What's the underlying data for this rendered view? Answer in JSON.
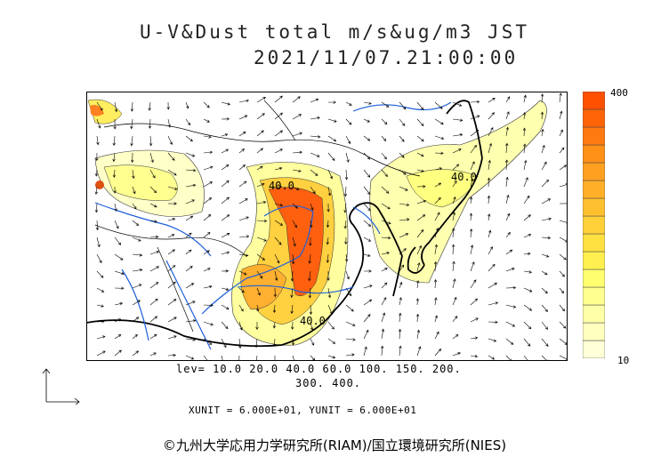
{
  "header": {
    "title": "U-V&Dust total m/s&ug/m3 JST",
    "datetime": "2021/11/07.21:00:00"
  },
  "legend": {
    "max_label": "400",
    "min_label": "10",
    "colors": [
      "#ffffd8",
      "#ffffc0",
      "#ffffa8",
      "#ffff90",
      "#ffff70",
      "#fff050",
      "#ffe040",
      "#ffd038",
      "#ffc030",
      "#ffb028",
      "#ffa020",
      "#ff9018",
      "#ff7a10",
      "#ff6408",
      "#ff5000"
    ]
  },
  "contour_levels": {
    "line1": "lev= 10.0 20.0 40.0 60.0 100. 150. 200.",
    "line2": "300. 400."
  },
  "units": "XUNIT = 6.000E+01, YUNIT = 6.000E+01",
  "map_labels": {
    "label_a": "40.0",
    "label_b": "40.0",
    "label_c": "40.0"
  },
  "credit": "©九州大学応用力学研究所(RIAM)/国立環境研究所(NIES)"
}
